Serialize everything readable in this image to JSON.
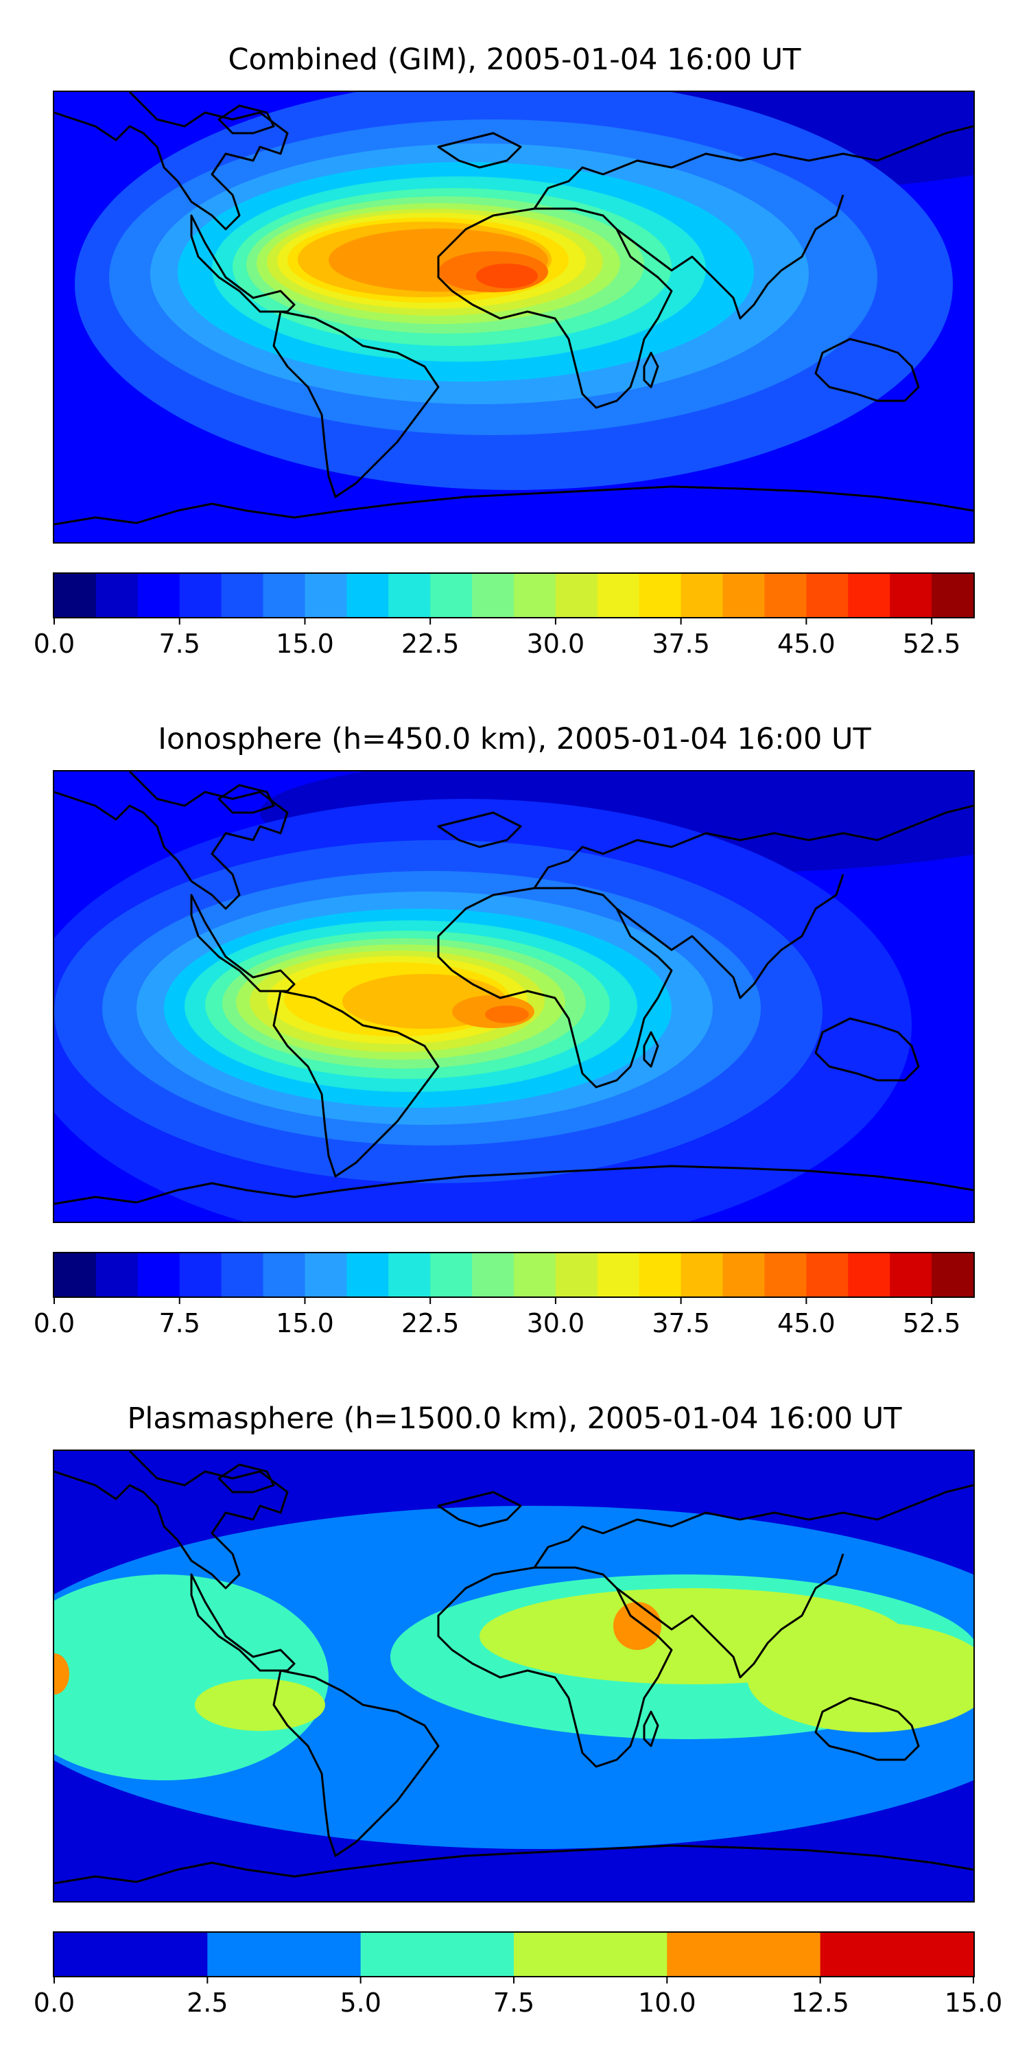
{
  "chart_data": [
    {
      "type": "heatmap",
      "title": "Combined (GIM), 2005-01-04 16:00 UT",
      "colorbar": {
        "levels": [
          0.0,
          2.5,
          5.0,
          7.5,
          10.0,
          12.5,
          15.0,
          17.5,
          20.0,
          22.5,
          25.0,
          27.5,
          30.0,
          32.5,
          35.0,
          37.5,
          40.0,
          42.5,
          45.0,
          47.5,
          50.0,
          52.5,
          55.0
        ],
        "tick_labels": [
          "0.0",
          "7.5",
          "15.0",
          "22.5",
          "30.0",
          "37.5",
          "45.0",
          "52.5"
        ],
        "tick_values": [
          0.0,
          7.5,
          15.0,
          22.5,
          30.0,
          37.5,
          45.0,
          52.5
        ],
        "vmin": 0.0,
        "vmax": 55.0,
        "colors": [
          "#00007f",
          "#0000c8",
          "#0000ff",
          "#0a28ff",
          "#1452ff",
          "#1e7cff",
          "#28a0ff",
          "#00c8ff",
          "#1ee8e0",
          "#48f8b4",
          "#7cf888",
          "#a8f85a",
          "#d0f034",
          "#f0f01a",
          "#ffe000",
          "#ffbc00",
          "#ff9800",
          "#ff7200",
          "#ff4c00",
          "#ff2400",
          "#d40000",
          "#960000"
        ]
      },
      "peak": {
        "region": "South Atlantic / West Africa",
        "approx_value": 47.5
      },
      "grid": false
    },
    {
      "type": "heatmap",
      "title": "Ionosphere  (h=450.0 km), 2005-01-04 16:00 UT",
      "colorbar": {
        "levels": [
          0.0,
          2.5,
          5.0,
          7.5,
          10.0,
          12.5,
          15.0,
          17.5,
          20.0,
          22.5,
          25.0,
          27.5,
          30.0,
          32.5,
          35.0,
          37.5,
          40.0,
          42.5,
          45.0,
          47.5,
          50.0,
          52.5,
          55.0
        ],
        "tick_labels": [
          "0.0",
          "7.5",
          "15.0",
          "22.5",
          "30.0",
          "37.5",
          "45.0",
          "52.5"
        ],
        "tick_values": [
          0.0,
          7.5,
          15.0,
          22.5,
          30.0,
          37.5,
          45.0,
          52.5
        ],
        "vmin": 0.0,
        "vmax": 55.0,
        "colors": [
          "#00007f",
          "#0000c8",
          "#0000ff",
          "#0a28ff",
          "#1452ff",
          "#1e7cff",
          "#28a0ff",
          "#00c8ff",
          "#1ee8e0",
          "#48f8b4",
          "#7cf888",
          "#a8f85a",
          "#d0f034",
          "#f0f01a",
          "#ffe000",
          "#ffbc00",
          "#ff9800",
          "#ff7200",
          "#ff4c00",
          "#ff2400",
          "#d40000",
          "#960000"
        ]
      },
      "peak": {
        "region": "South Atlantic / West Africa",
        "approx_value": 45.0
      },
      "grid": false
    },
    {
      "type": "heatmap",
      "title": "Plasmasphere (h=1500.0 km), 2005-01-04 16:00 UT",
      "colorbar": {
        "levels": [
          0.0,
          2.5,
          5.0,
          7.5,
          10.0,
          12.5,
          15.0
        ],
        "tick_labels": [
          "0.0",
          "2.5",
          "5.0",
          "7.5",
          "10.0",
          "12.5",
          "15.0"
        ],
        "tick_values": [
          0.0,
          2.5,
          5.0,
          7.5,
          10.0,
          12.5,
          15.0
        ],
        "vmin": 0.0,
        "vmax": 15.0,
        "colors": [
          "#0000d8",
          "#0080ff",
          "#3cf8c0",
          "#bcf83c",
          "#ff9000",
          "#d80000"
        ]
      },
      "peak": {
        "region": "Arabian Peninsula",
        "approx_value": 11.0
      },
      "grid": false
    }
  ]
}
